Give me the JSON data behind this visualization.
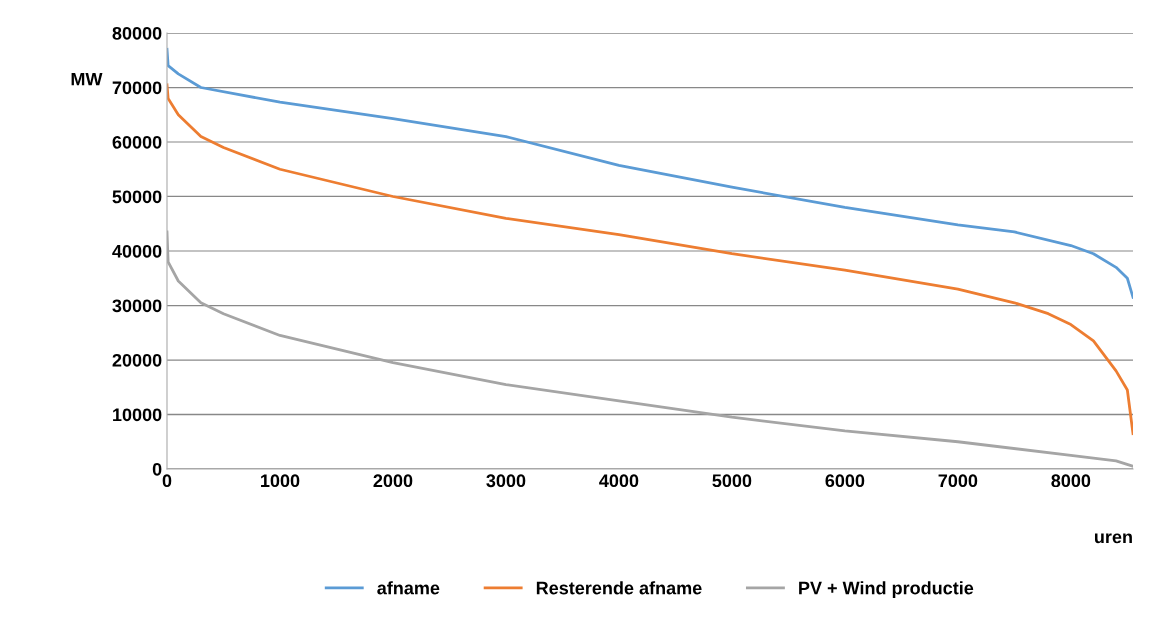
{
  "chart_data": {
    "type": "line",
    "xlabel": "uren",
    "ylabel": "MW",
    "xlim": [
      0,
      8550
    ],
    "xticks": [
      0,
      1000,
      2000,
      3000,
      4000,
      5000,
      6000,
      7000,
      8000
    ],
    "ylim": [
      0,
      80000
    ],
    "yticks": [
      0,
      10000,
      20000,
      30000,
      40000,
      50000,
      60000,
      70000,
      80000
    ],
    "grid": "y",
    "legend": "bottom",
    "marker": "none",
    "line_style": "solid",
    "series": [
      {
        "name": "afname",
        "color": "#5b9bd5",
        "x": [
          0,
          10,
          100,
          300,
          1000,
          2000,
          3000,
          4000,
          5000,
          6000,
          7000,
          7500,
          8000,
          8200,
          8400,
          8500,
          8550
        ],
        "values": [
          77000,
          74000,
          72500,
          70000,
          67300,
          64300,
          61000,
          55700,
          51700,
          48000,
          44800,
          43500,
          41000,
          39500,
          37000,
          35000,
          31500
        ]
      },
      {
        "name": "Resterende afname",
        "color": "#ed7d31",
        "x": [
          0,
          10,
          100,
          300,
          500,
          1000,
          2000,
          3000,
          4000,
          5000,
          6000,
          7000,
          7500,
          7800,
          8000,
          8200,
          8400,
          8500,
          8550
        ],
        "values": [
          70500,
          68000,
          65000,
          61000,
          59000,
          55000,
          50000,
          46000,
          43000,
          39500,
          36500,
          33000,
          30500,
          28500,
          26500,
          23500,
          18000,
          14500,
          6500
        ]
      },
      {
        "name": "PV + Wind productie",
        "color": "#a5a5a5",
        "x": [
          0,
          10,
          100,
          300,
          500,
          1000,
          2000,
          3000,
          4000,
          5000,
          6000,
          7000,
          8000,
          8400,
          8550
        ],
        "values": [
          43500,
          38000,
          34500,
          30500,
          28500,
          24500,
          19500,
          15500,
          12500,
          9500,
          7000,
          5000,
          2500,
          1500,
          500
        ]
      }
    ]
  }
}
